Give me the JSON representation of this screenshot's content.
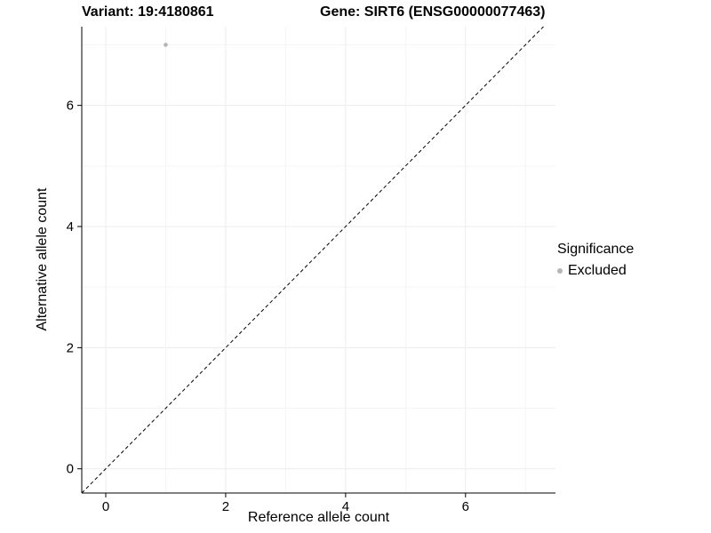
{
  "title": {
    "left": "Variant: 19:4180861",
    "right": "Gene: SIRT6 (ENSG00000077463)"
  },
  "legend": {
    "title": "Significance",
    "items": [
      {
        "label": "Excluded",
        "color": "#b5b5b5"
      }
    ]
  },
  "colors": {
    "axis": "#000000",
    "grid_major": "#ececec",
    "grid_minor": "#f5f5f5",
    "reference_line": "#000000",
    "point": "#b5b5b5",
    "background": "#ffffff"
  },
  "chart_data": {
    "type": "scatter",
    "title": "Variant: 19:4180861   Gene: SIRT6 (ENSG00000077463)",
    "xlabel": "Reference allele count",
    "ylabel": "Alternative allele count",
    "xlim": [
      -0.4,
      7.5
    ],
    "ylim": [
      -0.4,
      7.3
    ],
    "xticks": [
      0,
      2,
      4,
      6
    ],
    "yticks": [
      0,
      2,
      4,
      6
    ],
    "xticks_minor": [
      1,
      3,
      5,
      7
    ],
    "yticks_minor": [
      1,
      3,
      5,
      7
    ],
    "grid": true,
    "legend_position": "right",
    "series": [
      {
        "name": "Excluded",
        "color": "#b5b5b5",
        "points": [
          {
            "x": 1,
            "y": 7
          }
        ]
      }
    ],
    "reference_line": {
      "style": "dashed",
      "from": [
        -0.4,
        -0.4
      ],
      "to": [
        7.3,
        7.3
      ],
      "meaning": "y = x identity line"
    }
  }
}
